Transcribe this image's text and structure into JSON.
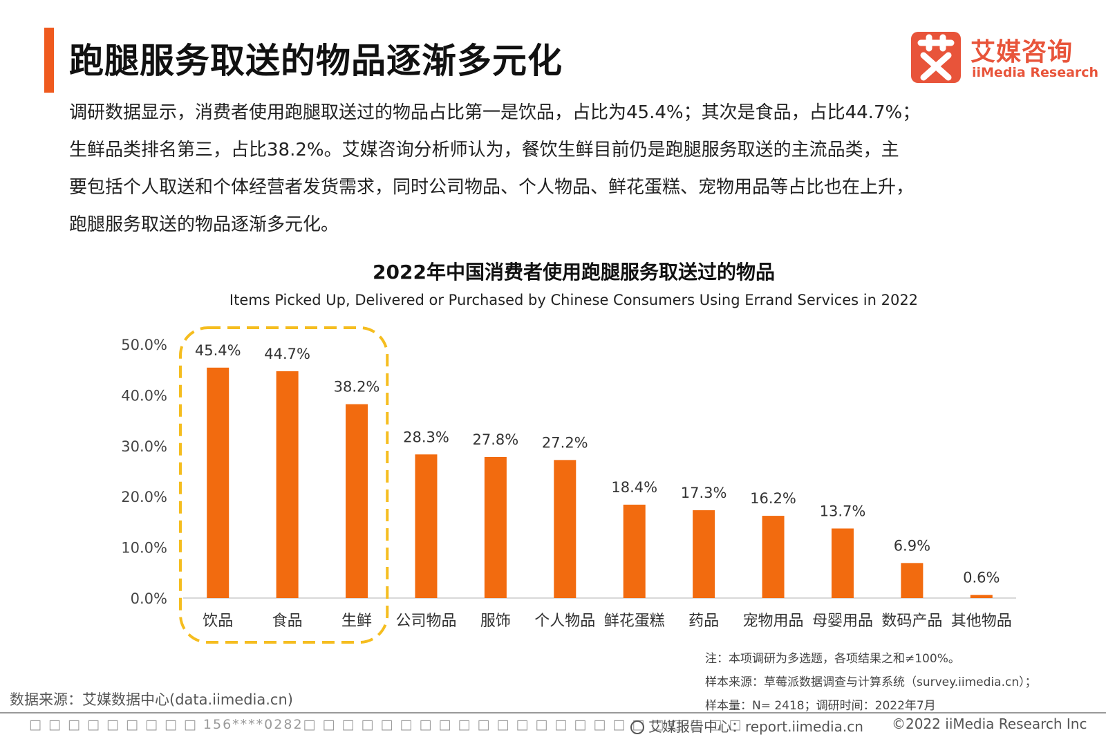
{
  "header": {
    "title": "跑腿服务取送的物品逐渐多元化",
    "logo_cn": "艾媒咨询",
    "logo_en": "iiMedia Research"
  },
  "intro_lines": [
    "调研数据显示，消费者使用跑腿取送过的物品占比第一是饮品，占比为45.4%；其次是食品，占比44.7%；",
    "生鲜品类排名第三，占比38.2%。艾媒咨询分析师认为，餐饮生鲜目前仍是跑腿服务取送的主流品类，主",
    "要包括个人取送和个体经营者发货需求，同时公司物品、个人物品、鲜花蛋糕、宠物用品等占比也在上升，",
    "跑腿服务取送的物品逐渐多元化。"
  ],
  "chart_data": {
    "type": "bar",
    "title": "2022年中国消费者使用跑腿服务取送过的物品",
    "subtitle": "Items Picked Up, Delivered or Purchased by Chinese Consumers Using Errand Services in 2022",
    "categories": [
      "饮品",
      "食品",
      "生鲜",
      "公司物品",
      "服饰",
      "个人物品",
      "鲜花蛋糕",
      "药品",
      "宠物用品",
      "母婴用品",
      "数码产品",
      "其他物品"
    ],
    "values": [
      45.4,
      44.7,
      38.2,
      28.3,
      27.8,
      27.2,
      18.4,
      17.3,
      16.2,
      13.7,
      6.9,
      0.6
    ],
    "value_labels": [
      "45.4%",
      "44.7%",
      "38.2%",
      "28.3%",
      "27.8%",
      "27.2%",
      "18.4%",
      "17.3%",
      "16.2%",
      "13.7%",
      "6.9%",
      "0.6%"
    ],
    "yticks": [
      0,
      10,
      20,
      30,
      40,
      50
    ],
    "ytick_labels": [
      "0.0%",
      "10.0%",
      "20.0%",
      "30.0%",
      "40.0%",
      "50.0%"
    ],
    "ylim": [
      0,
      50
    ],
    "highlighted_categories": [
      "饮品",
      "食品",
      "生鲜"
    ],
    "bar_color": "#f26b0f",
    "highlight_color": "#f5bd1f",
    "grid": false,
    "legend": "none"
  },
  "notes": [
    "注：本项调研为多选题，各项结果之和≠100%。",
    "样本来源：草莓派数据调查与计算系统（survey.iimedia.cn）；",
    "样本量：N= 2418；调研时间：2022年7月"
  ],
  "source": "数据来源：艾媒数据中心(data.iimedia.cn)",
  "footer": {
    "left": "□ □ □ □ □ □ □ □ □ 156****0282□ □ □ □ □ □ □ □ □ □ □ □ □ □ □ □ □ □ □ □ □ □ □",
    "center": "艾媒报告中心：report.iimedia.cn",
    "right": "©2022  iiMedia Research  Inc"
  }
}
